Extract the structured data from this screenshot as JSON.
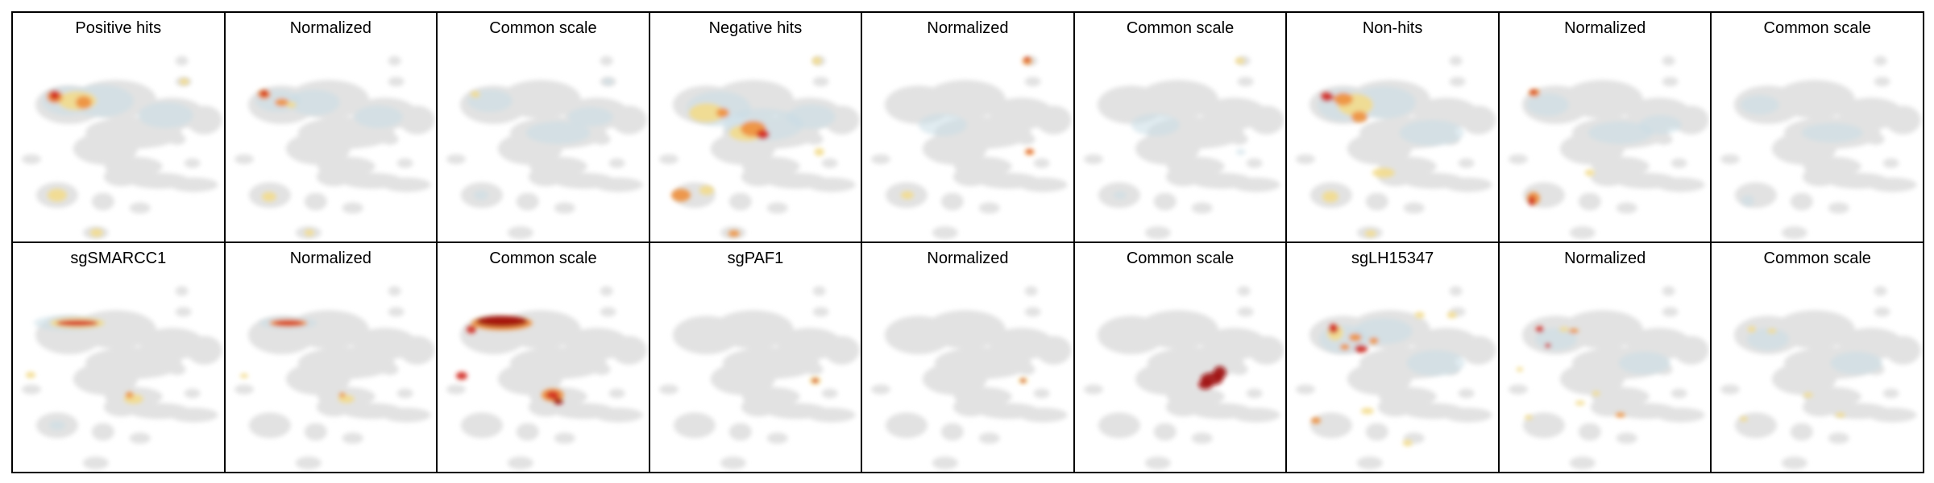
{
  "colors": {
    "background": "#ffffff",
    "frame": "#000000",
    "base_cell_cloud": "#e2e2e2",
    "density_low": "#c9dde6",
    "density_mid": "#f3dc8c",
    "density_high": "#ee8f3c",
    "density_max": "#d1271f",
    "density_saturated": "#9f0a0a"
  },
  "rows": [
    {
      "panels": [
        {
          "title": "Positive hits",
          "kind": "raw"
        },
        {
          "title": "Normalized",
          "kind": "normalized"
        },
        {
          "title": "Common scale",
          "kind": "common"
        },
        {
          "title": "Negative hits",
          "kind": "raw"
        },
        {
          "title": "Normalized",
          "kind": "normalized"
        },
        {
          "title": "Common scale",
          "kind": "common"
        },
        {
          "title": "Non-hits",
          "kind": "raw"
        },
        {
          "title": "Normalized",
          "kind": "normalized"
        },
        {
          "title": "Common scale",
          "kind": "common"
        }
      ]
    },
    {
      "panels": [
        {
          "title": "sgSMARCC1",
          "kind": "raw"
        },
        {
          "title": "Normalized",
          "kind": "normalized"
        },
        {
          "title": "Common scale",
          "kind": "common"
        },
        {
          "title": "sgPAF1",
          "kind": "raw"
        },
        {
          "title": "Normalized",
          "kind": "normalized"
        },
        {
          "title": "Common scale",
          "kind": "common"
        },
        {
          "title": "sgLH15347",
          "kind": "raw"
        },
        {
          "title": "Normalized",
          "kind": "normalized"
        },
        {
          "title": "Common scale",
          "kind": "common"
        }
      ]
    }
  ]
}
